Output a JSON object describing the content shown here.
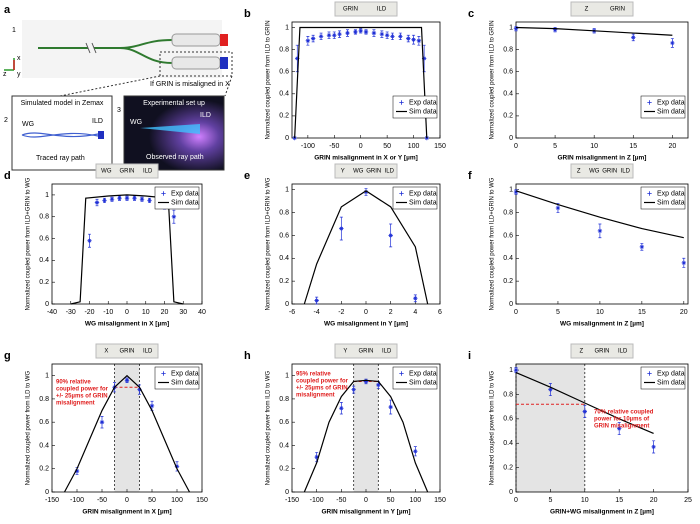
{
  "schematic": {
    "panel": "a",
    "steps": [
      "1",
      "2",
      "3"
    ],
    "caption": "If GRIN is misaligned in X",
    "axes": [
      "z",
      "x",
      "y"
    ],
    "sim_title": "Simulated model in Zemax",
    "sim_labels": [
      "WG",
      "ILD",
      "Traced ray path"
    ],
    "exp_title": "Experimental set up",
    "exp_labels": [
      "WG",
      "ILD",
      "Observed ray path"
    ]
  },
  "chart_data": [
    {
      "type": "line",
      "panel": "b",
      "inset": [
        "GRIN",
        "ILD"
      ],
      "xlabel": "GRIN misalignment in X or Y  [µm]",
      "ylabel": "Normalized coupled power from ILD to GRIN",
      "xlim": [
        -130,
        150
      ],
      "xticks": [
        -100,
        -50,
        0,
        50,
        100,
        150
      ],
      "ylim": [
        0,
        1.05
      ],
      "yticks": [
        0,
        0.2,
        0.4,
        0.6,
        0.8,
        1
      ],
      "legend": "lower right",
      "series": [
        {
          "name": "Exp data",
          "color": "#1f2fd6",
          "style": "markers",
          "x": [
            -125,
            -120,
            -100,
            -90,
            -75,
            -60,
            -50,
            -40,
            -25,
            -10,
            0,
            10,
            25,
            40,
            50,
            60,
            75,
            90,
            100,
            110,
            120,
            125
          ],
          "values": [
            0,
            0.72,
            0.88,
            0.9,
            0.92,
            0.93,
            0.93,
            0.94,
            0.95,
            0.96,
            0.97,
            0.96,
            0.95,
            0.94,
            0.93,
            0.92,
            0.92,
            0.9,
            0.89,
            0.88,
            0.72,
            0
          ],
          "errors": [
            0,
            0.12,
            0.04,
            0.03,
            0.03,
            0.03,
            0.03,
            0.03,
            0.03,
            0.02,
            0.02,
            0.02,
            0.03,
            0.03,
            0.03,
            0.03,
            0.03,
            0.03,
            0.04,
            0.04,
            0.12,
            0
          ]
        },
        {
          "name": "Sim data",
          "color": "#000000",
          "style": "line",
          "x": [
            -125,
            -115,
            115,
            125
          ],
          "values": [
            0,
            1,
            1,
            0
          ]
        }
      ]
    },
    {
      "type": "line",
      "panel": "c",
      "inset": [
        "Z",
        "GRIN"
      ],
      "xlabel": "GRIN misalignment in Z  [µm]",
      "ylabel": "Normalized coupled power from ILD to GRIN",
      "xlim": [
        0,
        22
      ],
      "xticks": [
        0,
        5,
        10,
        15,
        20
      ],
      "ylim": [
        0,
        1.05
      ],
      "yticks": [
        0,
        0.2,
        0.4,
        0.6,
        0.8,
        1
      ],
      "legend": "lower right",
      "series": [
        {
          "name": "Exp data",
          "color": "#1f2fd6",
          "style": "markers",
          "x": [
            0,
            5,
            10,
            15,
            20
          ],
          "values": [
            0.99,
            0.98,
            0.97,
            0.91,
            0.86
          ],
          "errors": [
            0.02,
            0.02,
            0.02,
            0.03,
            0.04
          ]
        },
        {
          "name": "Sim data",
          "color": "#000000",
          "style": "line",
          "x": [
            0,
            5,
            10,
            15,
            20
          ],
          "values": [
            1,
            0.99,
            0.97,
            0.95,
            0.93
          ]
        }
      ]
    },
    {
      "type": "line",
      "panel": "d",
      "inset": [
        "WG",
        "GRIN",
        "ILD"
      ],
      "xlabel": "WG misalignment in X  [µm]",
      "ylabel": "Normalized coupled power from ILD+GRIN to WG",
      "xlim": [
        -40,
        40
      ],
      "xticks": [
        -40,
        -30,
        -20,
        -10,
        0,
        10,
        20,
        30,
        40
      ],
      "ylim": [
        0,
        1.1
      ],
      "yticks": [
        0,
        0.2,
        0.4,
        0.6,
        0.8,
        1
      ],
      "legend": "upper right",
      "series": [
        {
          "name": "Exp data",
          "color": "#1f2fd6",
          "style": "markers",
          "x": [
            -20,
            -16,
            -12,
            -8,
            -4,
            0,
            4,
            8,
            12,
            16,
            20,
            25
          ],
          "values": [
            0.58,
            0.93,
            0.95,
            0.96,
            0.97,
            0.97,
            0.97,
            0.96,
            0.95,
            0.93,
            0.9,
            0.8
          ],
          "errors": [
            0.06,
            0.03,
            0.02,
            0.02,
            0.02,
            0.02,
            0.02,
            0.02,
            0.02,
            0.03,
            0.03,
            0.06
          ]
        },
        {
          "name": "Sim data",
          "color": "#000000",
          "style": "line",
          "x": [
            -30,
            -25,
            -22,
            -10,
            0,
            10,
            22,
            25,
            30
          ],
          "values": [
            0,
            0.02,
            0.97,
            0.99,
            1,
            0.99,
            0.97,
            0.02,
            0
          ]
        }
      ]
    },
    {
      "type": "line",
      "panel": "e",
      "inset": [
        "Y",
        "WG",
        "GRIN",
        "ILD"
      ],
      "xlabel": "WG misalignment in Y  [µm]",
      "ylabel": "Normalized coupled power from ILD+GRIN to WG",
      "xlim": [
        -6,
        6
      ],
      "xticks": [
        -6,
        -4,
        -2,
        0,
        2,
        4,
        6
      ],
      "ylim": [
        0,
        1.05
      ],
      "yticks": [
        0,
        0.2,
        0.4,
        0.6,
        0.8,
        1
      ],
      "legend": "upper right",
      "series": [
        {
          "name": "Exp data",
          "color": "#1f2fd6",
          "style": "markers",
          "x": [
            -4,
            -2,
            0,
            2,
            4
          ],
          "values": [
            0.03,
            0.66,
            0.98,
            0.6,
            0.05
          ],
          "errors": [
            0.03,
            0.1,
            0.03,
            0.1,
            0.03
          ]
        },
        {
          "name": "Sim data",
          "color": "#000000",
          "style": "line",
          "x": [
            -5,
            -4,
            -2,
            0,
            2,
            4,
            5
          ],
          "values": [
            0,
            0.35,
            0.85,
            0.99,
            0.85,
            0.5,
            0
          ]
        }
      ]
    },
    {
      "type": "line",
      "panel": "f",
      "inset": [
        "Z",
        "WG",
        "GRIN",
        "ILD"
      ],
      "xlabel": "WG misalignment in Z  [µm]",
      "ylabel": "Normalized coupled power from ILD+GRIN to WG",
      "xlim": [
        0,
        20.5
      ],
      "xticks": [
        0,
        5,
        10,
        15,
        20
      ],
      "ylim": [
        0,
        1.05
      ],
      "yticks": [
        0,
        0.2,
        0.4,
        0.6,
        0.8,
        1
      ],
      "legend": "upper right",
      "series": [
        {
          "name": "Exp data",
          "color": "#1f2fd6",
          "style": "markers",
          "x": [
            0,
            5,
            10,
            15,
            20
          ],
          "values": [
            0.98,
            0.84,
            0.64,
            0.5,
            0.36
          ],
          "errors": [
            0.02,
            0.04,
            0.06,
            0.03,
            0.04
          ]
        },
        {
          "name": "Sim data",
          "color": "#000000",
          "style": "line",
          "x": [
            0,
            5,
            10,
            15,
            20
          ],
          "values": [
            0.99,
            0.87,
            0.76,
            0.66,
            0.58
          ]
        }
      ]
    },
    {
      "type": "line",
      "panel": "g",
      "inset": [
        "X",
        "GRIN",
        "ILD"
      ],
      "xlabel": "GRIN misalignment in X  [µm]",
      "ylabel": "Normalized coupled power from ILD to WG",
      "xlim": [
        -150,
        150
      ],
      "xticks": [
        -150,
        -100,
        -50,
        0,
        50,
        100,
        150
      ],
      "ylim": [
        0,
        1.1
      ],
      "yticks": [
        0,
        0.2,
        0.4,
        0.6,
        0.8,
        1
      ],
      "legend": "upper right",
      "shade": [
        -25,
        25
      ],
      "ref_y": 0.9,
      "annotation": [
        "90% relative",
        "coupled power for",
        "+/- 25µms of GRIN",
        "misalignment"
      ],
      "series": [
        {
          "name": "Exp data",
          "color": "#1f2fd6",
          "style": "markers",
          "x": [
            -100,
            -50,
            -25,
            0,
            25,
            50,
            100
          ],
          "values": [
            0.18,
            0.6,
            0.9,
            0.96,
            0.88,
            0.74,
            0.22
          ],
          "errors": [
            0.03,
            0.05,
            0.04,
            0.02,
            0.04,
            0.04,
            0.04
          ]
        },
        {
          "name": "Sim data",
          "color": "#000000",
          "style": "line",
          "x": [
            -125,
            -100,
            -75,
            -50,
            -25,
            0,
            25,
            50,
            75,
            100,
            125
          ],
          "values": [
            0,
            0.2,
            0.45,
            0.7,
            0.9,
            1,
            0.9,
            0.7,
            0.45,
            0.2,
            0
          ]
        }
      ]
    },
    {
      "type": "line",
      "panel": "h",
      "inset": [
        "Y",
        "GRIN",
        "ILD"
      ],
      "xlabel": "GRIN misalignment in Y  [µm]",
      "ylabel": "Normalized coupled power from ILD to WG",
      "xlim": [
        -150,
        150
      ],
      "xticks": [
        -150,
        -100,
        -50,
        0,
        50,
        100,
        150
      ],
      "ylim": [
        0,
        1.1
      ],
      "yticks": [
        0,
        0.2,
        0.4,
        0.6,
        0.8,
        1
      ],
      "legend": "upper right",
      "shade": [
        -25,
        25
      ],
      "ref_y": 0.95,
      "annotation": [
        "95% relative",
        "coupled power for",
        "+/- 25µms of GRIN",
        "misalignment"
      ],
      "series": [
        {
          "name": "Exp data",
          "color": "#1f2fd6",
          "style": "markers",
          "x": [
            -100,
            -50,
            -25,
            0,
            25,
            50,
            100
          ],
          "values": [
            0.3,
            0.72,
            0.88,
            0.95,
            0.92,
            0.73,
            0.35
          ],
          "errors": [
            0.04,
            0.05,
            0.03,
            0.02,
            0.03,
            0.06,
            0.04
          ]
        },
        {
          "name": "Sim data",
          "color": "#000000",
          "style": "line",
          "x": [
            -125,
            -100,
            -75,
            -50,
            -25,
            0,
            25,
            50,
            75,
            100,
            125
          ],
          "values": [
            0,
            0.25,
            0.6,
            0.82,
            0.95,
            0.96,
            0.95,
            0.82,
            0.6,
            0.25,
            0
          ]
        }
      ]
    },
    {
      "type": "line",
      "panel": "i",
      "inset": [
        "Z",
        "GRIN",
        "ILD"
      ],
      "xlabel": "GRIN+WG misalignment in Z  [µm]",
      "ylabel": "Normalized coupled power from ILD to WG",
      "xlim": [
        0,
        25
      ],
      "xticks": [
        0,
        5,
        10,
        15,
        20,
        25
      ],
      "ylim": [
        0,
        1.05
      ],
      "yticks": [
        0,
        0.2,
        0.4,
        0.6,
        0.8,
        1
      ],
      "legend": "upper right",
      "shade": [
        0,
        10
      ],
      "ref_y": 0.72,
      "annotation": [
        "70% relative coupled",
        "power for 10µms of",
        "GRIN misalignment"
      ],
      "series": [
        {
          "name": "Exp data",
          "color": "#1f2fd6",
          "style": "markers",
          "x": [
            0,
            5,
            10,
            15,
            20
          ],
          "values": [
            1,
            0.84,
            0.66,
            0.52,
            0.37
          ],
          "errors": [
            0.02,
            0.05,
            0.05,
            0.05,
            0.05
          ]
        },
        {
          "name": "Sim data",
          "color": "#000000",
          "style": "line",
          "x": [
            0,
            5,
            10,
            15,
            20
          ],
          "values": [
            0.98,
            0.86,
            0.73,
            0.6,
            0.48
          ]
        }
      ]
    }
  ]
}
